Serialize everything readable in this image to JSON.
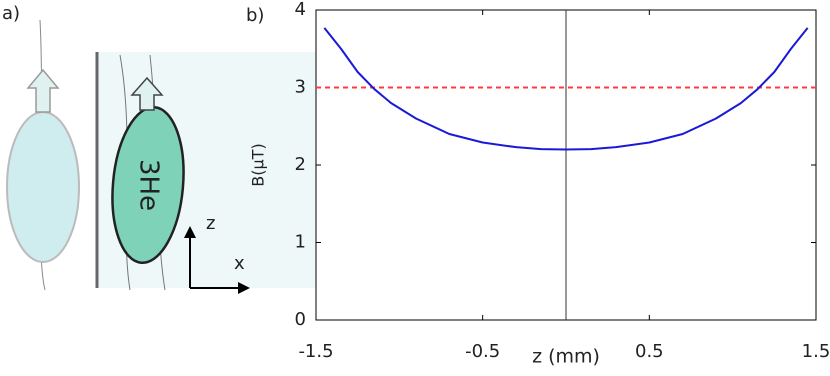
{
  "diagram": {
    "panel_label": "a)",
    "particle_label": "3He",
    "axis_z": "z",
    "axis_x": "x"
  },
  "chart_data": {
    "type": "line",
    "panel_label": "b)",
    "x_label": "z (mm)",
    "y_label": "B(μT)",
    "x": [
      -1.45,
      -1.35,
      -1.25,
      -1.15,
      -1.05,
      -0.9,
      -0.7,
      -0.5,
      -0.3,
      -0.15,
      0,
      0.15,
      0.3,
      0.5,
      0.7,
      0.9,
      1.05,
      1.15,
      1.25,
      1.35,
      1.45
    ],
    "series": [
      {
        "color": "#1a1ad6",
        "values": [
          3.77,
          3.5,
          3.2,
          2.98,
          2.8,
          2.6,
          2.4,
          2.29,
          2.23,
          2.205,
          2.2,
          2.205,
          2.23,
          2.29,
          2.4,
          2.6,
          2.8,
          2.98,
          3.2,
          3.5,
          3.77
        ]
      }
    ],
    "reference_line": {
      "value": 3,
      "color": "#ff3b3b",
      "style": "dashed"
    },
    "vertical_line": {
      "value": 0,
      "color": "#333333"
    },
    "xlim": [
      -1.5,
      1.5
    ],
    "ylim": [
      0,
      4
    ],
    "xticks": [
      -1.5,
      -0.5,
      0.5,
      1.5
    ],
    "yticks": [
      0,
      1,
      2,
      3,
      4
    ]
  }
}
